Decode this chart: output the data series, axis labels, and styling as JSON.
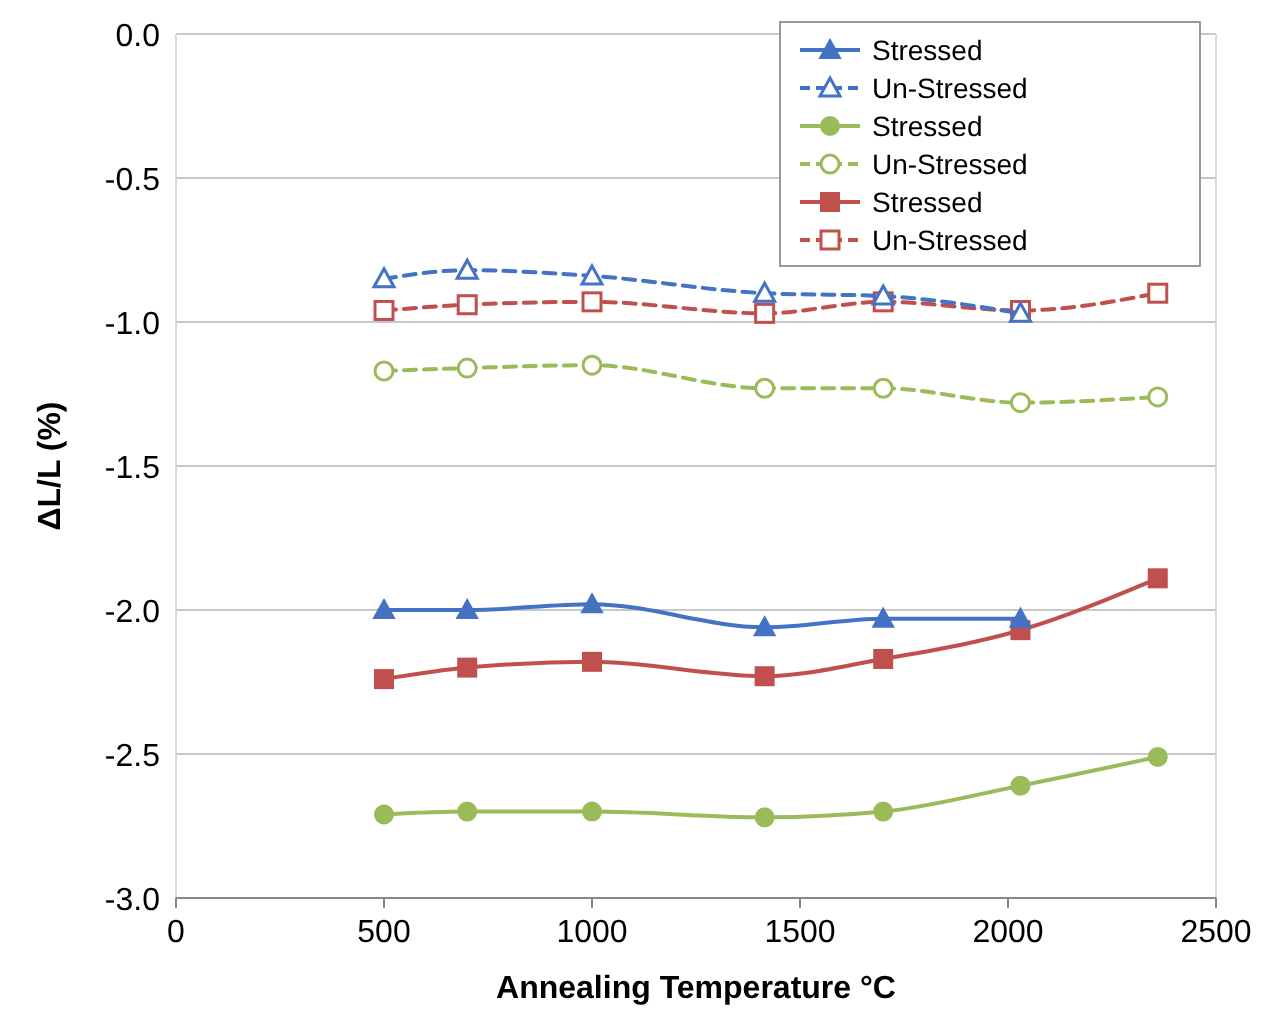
{
  "chart_data": {
    "type": "line",
    "xlabel": "Annealing Temperature °C",
    "ylabel": "ΔL/L (%)",
    "x": [
      500,
      700,
      1000,
      1415,
      1700,
      2030,
      2360
    ],
    "xlim": [
      0,
      2500
    ],
    "xticks": [
      0,
      500,
      1000,
      1500,
      2000,
      2500
    ],
    "ylim": [
      -3,
      0
    ],
    "yticks": [
      {
        "value": -3,
        "label": "-3.0"
      },
      {
        "value": -2.5,
        "label": "-2.5"
      },
      {
        "value": -2,
        "label": "-2.0"
      },
      {
        "value": -1.5,
        "label": "-1.5"
      },
      {
        "value": -1,
        "label": "-1.0"
      },
      {
        "value": -0.5,
        "label": "-0.5"
      },
      {
        "value": 0,
        "label": "0.0"
      }
    ],
    "grid": "y",
    "legend": "top right",
    "series": [
      {
        "name": "Stressed",
        "color": "#4472c4",
        "marker": "triangle",
        "line_style": "solid",
        "values": [
          -2.0,
          -2.0,
          -1.98,
          -2.06,
          -2.03,
          -2.03,
          null
        ]
      },
      {
        "name": "Un-Stressed",
        "color": "#4472c4",
        "marker": "triangle",
        "line_style": "dashed",
        "values": [
          -0.85,
          -0.82,
          -0.84,
          -0.9,
          -0.91,
          -0.97,
          null
        ]
      },
      {
        "name": "Stressed",
        "color": "#9bbb59",
        "marker": "circle",
        "line_style": "solid",
        "values": [
          -2.71,
          -2.7,
          -2.7,
          -2.72,
          -2.7,
          -2.61,
          -2.51
        ]
      },
      {
        "name": "Un-Stressed",
        "color": "#9bbb59",
        "marker": "circle",
        "line_style": "dashed",
        "values": [
          -1.17,
          -1.16,
          -1.15,
          -1.23,
          -1.23,
          -1.28,
          -1.26
        ]
      },
      {
        "name": "Stressed",
        "color": "#c0504d",
        "marker": "square",
        "line_style": "solid",
        "values": [
          -2.24,
          -2.2,
          -2.18,
          -2.23,
          -2.17,
          -2.07,
          -1.89
        ]
      },
      {
        "name": "Un-Stressed",
        "color": "#c0504d",
        "marker": "square",
        "line_style": "dashed",
        "values": [
          -0.96,
          -0.94,
          -0.93,
          -0.97,
          -0.93,
          -0.96,
          -0.9
        ]
      }
    ]
  }
}
